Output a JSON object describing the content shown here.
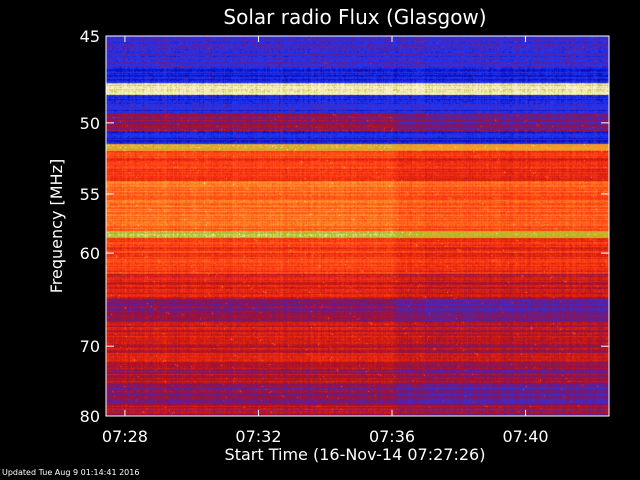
{
  "chart_data": {
    "type": "heatmap",
    "title": "Solar radio Flux (Glasgow)",
    "xlabel": "Start Time (16-Nov-14 07:27:26)",
    "ylabel": "Frequency [MHz]",
    "x_range": [
      "07:27:26",
      "07:42:30"
    ],
    "ylim": [
      45,
      80
    ],
    "y_axis_inverted": true,
    "x_ticks": [
      "07:28",
      "07:32",
      "07:36",
      "07:40"
    ],
    "y_ticks": [
      45,
      50,
      55,
      60,
      70,
      80
    ],
    "y_scale": "reciprocal",
    "colormap": "rainbow",
    "color_stops": [
      "#0a0ab0",
      "#1a3aff",
      "#5a1fa0",
      "#a01030",
      "#d81e0e",
      "#ff3a14",
      "#ff6a1e",
      "#ffa030",
      "#a8b820",
      "#fff0c8"
    ],
    "level_shift_time": "07:36:10",
    "frequency_bands": [
      {
        "from": 45.0,
        "to": 46.8,
        "level": 0.15
      },
      {
        "from": 46.8,
        "to": 47.6,
        "level": 0.05
      },
      {
        "from": 47.6,
        "to": 48.3,
        "level": 1.0
      },
      {
        "from": 48.3,
        "to": 49.4,
        "level": 0.12
      },
      {
        "from": 49.4,
        "to": 50.5,
        "level": 0.3
      },
      {
        "from": 50.5,
        "to": 51.4,
        "level": 0.08
      },
      {
        "from": 51.4,
        "to": 51.9,
        "level": 0.85
      },
      {
        "from": 51.9,
        "to": 54.0,
        "level": 0.55
      },
      {
        "from": 54.0,
        "to": 58.0,
        "level": 0.68
      },
      {
        "from": 58.0,
        "to": 58.6,
        "level": 0.9
      },
      {
        "from": 58.6,
        "to": 62.0,
        "level": 0.55
      },
      {
        "from": 62.0,
        "to": 64.5,
        "level": 0.45
      },
      {
        "from": 64.5,
        "to": 67.0,
        "level": 0.3
      },
      {
        "from": 67.0,
        "to": 72.0,
        "level": 0.42
      },
      {
        "from": 72.0,
        "to": 75.0,
        "level": 0.35
      },
      {
        "from": 75.0,
        "to": 78.0,
        "level": 0.3
      },
      {
        "from": 78.0,
        "to": 80.0,
        "level": 0.38
      }
    ]
  },
  "footer": {
    "updated_text": "Updated Tue Aug  9 01:14:41 2016"
  }
}
